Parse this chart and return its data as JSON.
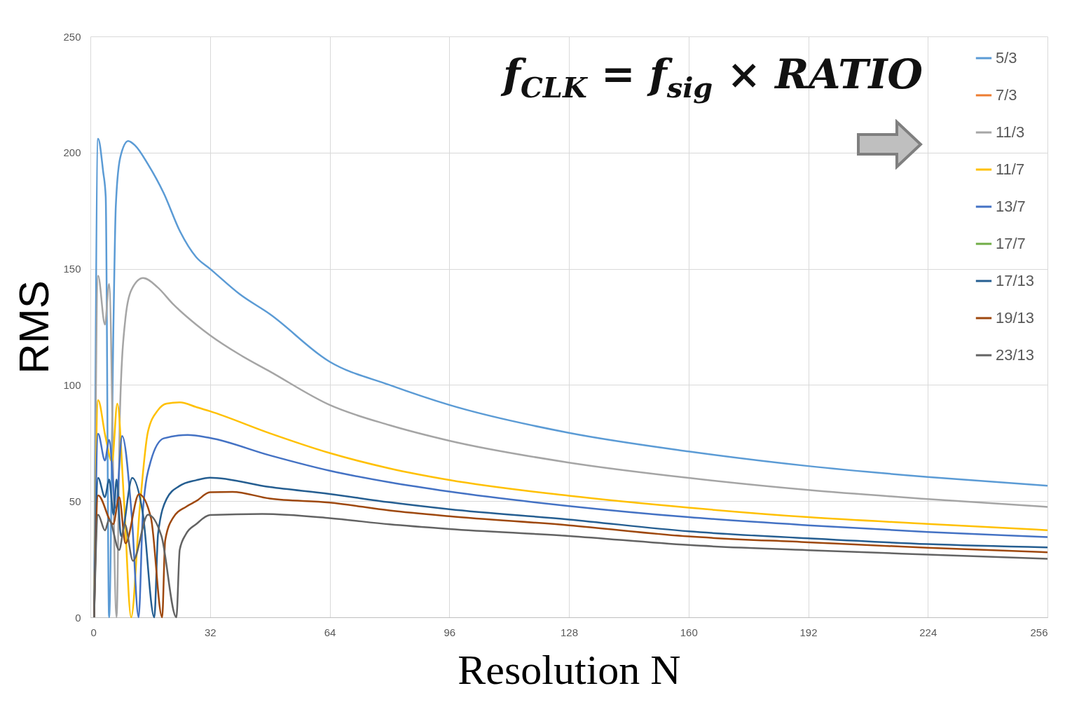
{
  "chart_data": {
    "type": "line",
    "xlabel": "Resolution N",
    "ylabel": "RMS",
    "annotations": [
      "f$_{CLK}$ = f$_{sig}$ × RATIO"
    ],
    "xlim": [
      0,
      256
    ],
    "xticks": [
      0,
      32,
      64,
      96,
      128,
      160,
      192,
      224,
      256
    ],
    "ylim": [
      0,
      250
    ],
    "yticks": [
      0,
      50,
      100,
      150,
      200,
      250
    ],
    "grid": true,
    "legend": "top right",
    "marker": "none",
    "line_style": "solid",
    "series": [
      {
        "name": "5/3",
        "color": "#5b9bd5",
        "x": [
          1,
          2.06,
          3.4,
          4.1,
          5.0,
          6.2,
          6.8,
          8,
          10.1,
          12,
          15.4,
          19.6,
          24,
          28.3,
          32,
          40,
          48,
          64,
          80,
          96,
          128,
          160,
          192,
          224,
          256
        ],
        "values": [
          0,
          206,
          192,
          181,
          0,
          129,
          177,
          198,
          205,
          203,
          195,
          182.6,
          166,
          155,
          150,
          139,
          130.5,
          110,
          100,
          91.4,
          79.4,
          71.4,
          65.1,
          60.4,
          56.6
        ]
      },
      {
        "name": "7/3",
        "color": "#ed7d31"
      },
      {
        "name": "11/3",
        "color": "#a5a5a5",
        "x": [
          1,
          2.06,
          3.9,
          5.0,
          7.0,
          7.9,
          9.4,
          11,
          14.1,
          18,
          22,
          28.3,
          32,
          40,
          48,
          64,
          80,
          96,
          128,
          160,
          192,
          224,
          256
        ],
        "values": [
          0,
          147,
          126,
          143.5,
          0,
          88,
          129,
          141,
          146,
          142,
          135,
          126,
          121.4,
          113,
          105.8,
          91.4,
          82.7,
          76,
          66.6,
          60,
          54.8,
          50.9,
          47.5
        ]
      },
      {
        "name": "11/7",
        "color": "#ffc000",
        "x": [
          1,
          2.06,
          4,
          5.8,
          7.2,
          9,
          10.9,
          13.2,
          15.4,
          18,
          20.4,
          24,
          28.3,
          32,
          48,
          64,
          80,
          96,
          128,
          160,
          192,
          224,
          256
        ],
        "values": [
          0,
          93.5,
          78,
          67,
          92,
          50,
          0,
          46.9,
          79.9,
          89,
          92,
          92.5,
          90.5,
          88.7,
          79.2,
          70.7,
          64.1,
          59.1,
          52.3,
          47.2,
          43.1,
          40.2,
          37.5
        ]
      },
      {
        "name": "13/7",
        "color": "#4472c4",
        "x": [
          1,
          2.06,
          3.9,
          5.0,
          6.8,
          8.5,
          11.1,
          12.9,
          14.1,
          16.2,
          19.6,
          26,
          32,
          48,
          64,
          80,
          96,
          128,
          160,
          192,
          224,
          256
        ],
        "values": [
          0,
          79,
          67.5,
          76.4,
          47,
          78,
          42.8,
          0,
          46.9,
          67.5,
          77,
          78.5,
          77.2,
          69.7,
          63.1,
          58.1,
          54.1,
          47.9,
          43.1,
          39.6,
          36.7,
          34.5
        ]
      },
      {
        "name": "17/7",
        "color": "#70ad47"
      },
      {
        "name": "17/13",
        "color": "#255e91",
        "x": [
          1,
          2.06,
          3.9,
          5.0,
          6.2,
          7.0,
          8.2,
          11.2,
          14,
          17.1,
          18.1,
          20.4,
          23.8,
          28.3,
          32,
          48,
          64,
          80,
          96,
          128,
          160,
          192,
          224,
          256
        ],
        "values": [
          0,
          60,
          51.7,
          59.3,
          44.2,
          59.3,
          35,
          60,
          45,
          0,
          35.9,
          51,
          56.5,
          59,
          60.1,
          56.1,
          53.1,
          49.5,
          46.5,
          42.1,
          37,
          34,
          31.5,
          30.1
        ]
      },
      {
        "name": "19/13",
        "color": "#9e480e",
        "x": [
          1,
          2.06,
          6.1,
          7.7,
          9.4,
          13,
          16.2,
          19.2,
          20,
          22.1,
          25.6,
          28.3,
          32,
          38,
          48,
          64,
          80,
          96,
          128,
          160,
          192,
          224,
          256
        ],
        "values": [
          0,
          52.5,
          40.1,
          51.7,
          31.8,
          53,
          42.8,
          0,
          33,
          42.8,
          47.6,
          50,
          53.8,
          54,
          51.1,
          49.4,
          46,
          43.5,
          39.6,
          34.8,
          32.3,
          29.9,
          28
        ]
      },
      {
        "name": "23/13",
        "color": "#636363",
        "x": [
          1,
          2.06,
          3.9,
          5.0,
          7.7,
          9.2,
          11.4,
          15.4,
          19,
          23,
          23.9,
          25.6,
          28.3,
          32,
          46,
          64,
          80,
          96,
          128,
          160,
          192,
          224,
          256
        ],
        "values": [
          0,
          44.2,
          37.4,
          42,
          29,
          40,
          24.3,
          44.2,
          35,
          0,
          29.1,
          35.9,
          40.1,
          44,
          44.5,
          42.7,
          40,
          38,
          35,
          31.1,
          28.9,
          27,
          25.2
        ]
      }
    ]
  }
}
